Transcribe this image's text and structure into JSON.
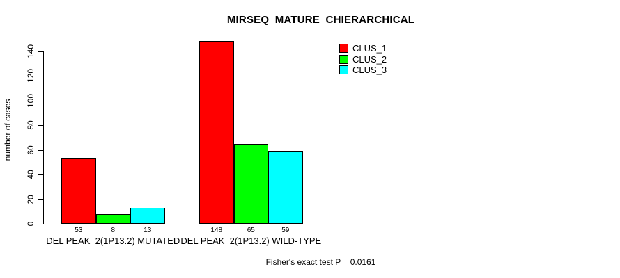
{
  "chart_data": {
    "type": "bar",
    "title": "MIRSEQ_MATURE_CHIERARCHICAL",
    "xlabel": "",
    "ylabel": "number of cases",
    "ylim": [
      0,
      148
    ],
    "yticks": [
      0,
      20,
      40,
      60,
      80,
      100,
      120,
      140
    ],
    "grid": false,
    "legend_position": "top-right",
    "values_shown_under_bars": true,
    "categories": [
      "DEL PEAK  2(1P13.2) MUTATED",
      "DEL PEAK  2(1P13.2) WILD-TYPE"
    ],
    "series": [
      {
        "name": "CLUS_1",
        "color": "#ff0000",
        "values": [
          53,
          148
        ]
      },
      {
        "name": "CLUS_2",
        "color": "#00ff00",
        "values": [
          8,
          65
        ]
      },
      {
        "name": "CLUS_3",
        "color": "#00ffff",
        "values": [
          13,
          59
        ]
      }
    ],
    "annotation": "Fisher's exact test P = 0.0161"
  },
  "colors": {
    "background": "#ffffff",
    "axis": "#000000",
    "text": "#000000"
  }
}
